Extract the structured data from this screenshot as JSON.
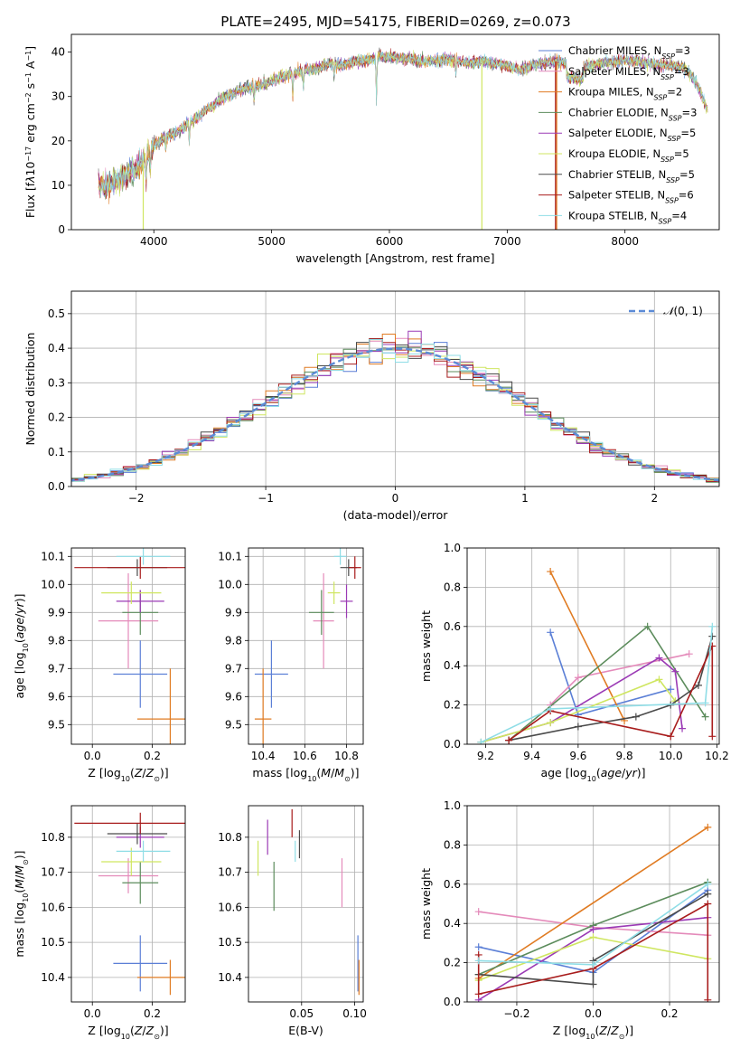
{
  "title": "PLATE=2495, MJD=54175, FIBERID=0269, z=0.073",
  "colors": {
    "Chabrier MILES": "#5b7fd6",
    "Salpeter MILES": "#e48aba",
    "Kroupa MILES": "#e07b22",
    "Chabrier ELODIE": "#5c8c5c",
    "Salpeter ELODIE": "#9b3ab5",
    "Kroupa ELODIE": "#cfe660",
    "Chabrier STELIB": "#4a4a4a",
    "Salpeter STELIB": "#a81c1c",
    "Kroupa STELIB": "#8fdde6"
  },
  "chart_data": [
    {
      "id": "spectrum",
      "type": "line",
      "xlabel": "wavelength [Angstrom, rest frame]",
      "ylabel_html": "Flux [f<tspan font-style='italic'>λ</tspan>10<tspan baseline-shift='super' font-size='8'>−17</tspan> erg cm<tspan baseline-shift='super' font-size='8'>−2</tspan> s<tspan baseline-shift='super' font-size='8'>−1</tspan> A<tspan baseline-shift='super' font-size='8'>−1</tspan>]",
      "xlim": [
        3300,
        8800
      ],
      "ylim": [
        0,
        44
      ],
      "xticks": [
        4000,
        5000,
        6000,
        7000,
        8000
      ],
      "yticks": [
        0,
        10,
        20,
        30,
        40
      ],
      "legend": "top-right",
      "continuum": {
        "x": [
          3530,
          3600,
          3700,
          3800,
          3900,
          4000,
          4100,
          4200,
          4300,
          4400,
          4500,
          4600,
          4700,
          4800,
          4900,
          5000,
          5100,
          5200,
          5300,
          5400,
          5500,
          5600,
          5700,
          5800,
          5900,
          6000,
          6100,
          6200,
          6300,
          6400,
          6500,
          6600,
          6700,
          6800,
          6900,
          7000,
          7100,
          7200,
          7300,
          7400,
          7500,
          7600,
          7700,
          7800,
          7900,
          8000,
          8100,
          8200,
          8300,
          8400,
          8500,
          8600,
          8700
        ],
        "y": [
          10.5,
          10,
          11,
          13,
          15,
          19,
          21,
          22,
          24,
          26,
          28,
          30,
          31,
          32,
          32.5,
          33.5,
          34.5,
          35.5,
          36,
          36.5,
          37.5,
          37,
          38,
          38,
          39,
          39,
          38.5,
          38.5,
          38,
          38,
          38.5,
          38,
          37.5,
          38,
          37.5,
          37,
          36,
          37,
          37.5,
          38,
          37.5,
          37,
          37,
          37.5,
          38,
          38,
          38,
          37.5,
          37,
          37,
          36.5,
          33.5,
          27
        ]
      },
      "series": [
        {
          "name": "Chabrier MILES",
          "label_suffix": "=3"
        },
        {
          "name": "Salpeter MILES",
          "label_suffix": "=3"
        },
        {
          "name": "Kroupa MILES",
          "label_suffix": "=2"
        },
        {
          "name": "Chabrier ELODIE",
          "label_suffix": "=3"
        },
        {
          "name": "Salpeter ELODIE",
          "label_suffix": "=5"
        },
        {
          "name": "Kroupa ELODIE",
          "label_suffix": "=5"
        },
        {
          "name": "Chabrier STELIB",
          "label_suffix": "=5"
        },
        {
          "name": "Salpeter STELIB",
          "label_suffix": "=6"
        },
        {
          "name": "Kroupa STELIB",
          "label_suffix": "=4"
        }
      ],
      "drops": [
        {
          "series": "Kroupa ELODIE",
          "x": 3910,
          "y_bottom": 0
        },
        {
          "series": "Kroupa ELODIE",
          "x": 6785,
          "y_bottom": 0
        },
        {
          "series": "Salpeter STELIB",
          "x": 7410,
          "y_bottom": 0
        },
        {
          "series": "Kroupa MILES",
          "x": 7420,
          "y_bottom": 0
        }
      ]
    },
    {
      "id": "residuals",
      "type": "histogram",
      "xlabel": "(data-model)/error",
      "ylabel": "Normed distribution",
      "xlim": [
        -2.5,
        2.5
      ],
      "ylim": [
        0,
        0.565
      ],
      "xticks": [
        -2,
        -1,
        0,
        1,
        2
      ],
      "yticks": [
        0.0,
        0.1,
        0.2,
        0.3,
        0.4,
        0.5
      ],
      "grid": true,
      "legend": "top-right",
      "reference": {
        "name": "N(0,1)",
        "mu": 0,
        "sigma": 1
      },
      "bin_width": 0.1
    },
    {
      "id": "age_vs_Z",
      "type": "errorbar",
      "xlabel_html": "Z [log<tspan baseline-shift='sub' font-size='8'>10</tspan>(<tspan font-style='italic'>Z</tspan>/<tspan font-style='italic'>Z</tspan><tspan baseline-shift='sub' font-size='8'>⊙</tspan>)]",
      "ylabel_html": "age  [log<tspan baseline-shift='sub' font-size='8'>10</tspan>(<tspan font-style='italic'>age</tspan>/<tspan font-style='italic'>yr</tspan>)]",
      "xlim": [
        -0.07,
        0.31
      ],
      "ylim": [
        9.43,
        10.13
      ],
      "xticks": [
        0.0,
        0.2
      ],
      "yticks": [
        9.5,
        9.6,
        9.7,
        9.8,
        9.9,
        10.0,
        10.1
      ],
      "grid": true,
      "points": [
        {
          "series": "Chabrier MILES",
          "x": 0.16,
          "xerr": 0.09,
          "y": 9.68,
          "yerr": 0.12
        },
        {
          "series": "Kroupa MILES",
          "x": 0.26,
          "xerr": 0.11,
          "y": 9.52,
          "yerr": 0.18
        },
        {
          "series": "Salpeter MILES",
          "x": 0.12,
          "xerr": 0.1,
          "y": 9.87,
          "yerr": 0.17
        },
        {
          "series": "Chabrier ELODIE",
          "x": 0.16,
          "xerr": 0.06,
          "y": 9.9,
          "yerr": 0.08
        },
        {
          "series": "Salpeter ELODIE",
          "x": 0.16,
          "xerr": 0.08,
          "y": 9.94,
          "yerr": 0.04
        },
        {
          "series": "Kroupa ELODIE",
          "x": 0.13,
          "xerr": 0.1,
          "y": 9.97,
          "yerr": 0.04
        },
        {
          "series": "Chabrier STELIB",
          "x": 0.15,
          "xerr": 0.1,
          "y": 10.06,
          "yerr": 0.03
        },
        {
          "series": "Salpeter STELIB",
          "x": 0.16,
          "xerr": 0.22,
          "y": 10.06,
          "yerr": 0.04
        },
        {
          "series": "Kroupa STELIB",
          "x": 0.17,
          "xerr": 0.09,
          "y": 10.1,
          "yerr": 0.03
        }
      ]
    },
    {
      "id": "age_vs_mass",
      "type": "errorbar",
      "xlabel_html": "mass [log<tspan baseline-shift='sub' font-size='8'>10</tspan>(<tspan font-style='italic'>M</tspan>/<tspan font-style='italic'>M</tspan><tspan baseline-shift='sub' font-size='8'>⊙</tspan>)]",
      "xlim": [
        10.33,
        10.88
      ],
      "ylim": [
        9.43,
        10.13
      ],
      "xticks": [
        10.4,
        10.6,
        10.8
      ],
      "yticks": [
        9.5,
        9.6,
        9.7,
        9.8,
        9.9,
        10.0,
        10.1
      ],
      "grid": true,
      "points": [
        {
          "series": "Chabrier MILES",
          "x": 10.44,
          "xerr": 0.08,
          "y": 9.68,
          "yerr": 0.12
        },
        {
          "series": "Kroupa MILES",
          "x": 10.4,
          "xerr": 0.04,
          "y": 9.52,
          "yerr": 0.18
        },
        {
          "series": "Salpeter MILES",
          "x": 10.69,
          "xerr": 0.05,
          "y": 9.87,
          "yerr": 0.17
        },
        {
          "series": "Chabrier ELODIE",
          "x": 10.68,
          "xerr": 0.06,
          "y": 9.9,
          "yerr": 0.08
        },
        {
          "series": "Salpeter ELODIE",
          "x": 10.8,
          "xerr": 0.03,
          "y": 9.94,
          "yerr": 0.06
        },
        {
          "series": "Kroupa ELODIE",
          "x": 10.74,
          "xerr": 0.03,
          "y": 9.97,
          "yerr": 0.04
        },
        {
          "series": "Chabrier STELIB",
          "x": 10.81,
          "xerr": 0.04,
          "y": 10.06,
          "yerr": 0.03
        },
        {
          "series": "Salpeter STELIB",
          "x": 10.84,
          "xerr": 0.03,
          "y": 10.06,
          "yerr": 0.04
        },
        {
          "series": "Kroupa STELIB",
          "x": 10.77,
          "xerr": 0.03,
          "y": 10.1,
          "yerr": 0.03
        }
      ]
    },
    {
      "id": "weight_vs_age",
      "type": "line",
      "xlabel_html": "age  [log<tspan baseline-shift='sub' font-size='8'>10</tspan>(<tspan font-style='italic'>age</tspan>/<tspan font-style='italic'>yr</tspan>)]",
      "ylabel": "mass weight",
      "xlim": [
        9.12,
        10.21
      ],
      "ylim": [
        0,
        1
      ],
      "xticks": [
        9.2,
        9.4,
        9.6,
        9.8,
        10.0,
        10.2
      ],
      "yticks": [
        0.0,
        0.2,
        0.4,
        0.6,
        0.8,
        1.0
      ],
      "grid": true,
      "series": [
        {
          "name": "Chabrier MILES",
          "x": [
            9.48,
            9.6,
            10.0
          ],
          "y": [
            0.57,
            0.15,
            0.28
          ]
        },
        {
          "name": "Salpeter MILES",
          "x": [
            9.48,
            9.6,
            10.08
          ],
          "y": [
            0.2,
            0.34,
            0.46
          ]
        },
        {
          "name": "Kroupa MILES",
          "x": [
            9.48,
            9.8
          ],
          "y": [
            0.88,
            0.12
          ]
        },
        {
          "name": "Chabrier ELODIE",
          "x": [
            9.3,
            9.9,
            10.15
          ],
          "y": [
            0.02,
            0.6,
            0.14
          ]
        },
        {
          "name": "Salpeter ELODIE",
          "x": [
            9.18,
            9.48,
            9.95,
            10.02,
            10.05
          ],
          "y": [
            0.01,
            0.11,
            0.44,
            0.37,
            0.08
          ]
        },
        {
          "name": "Kroupa ELODIE",
          "x": [
            9.18,
            9.48,
            9.95,
            10.02
          ],
          "y": [
            0.01,
            0.11,
            0.33,
            0.22
          ]
        },
        {
          "name": "Chabrier STELIB",
          "x": [
            9.3,
            9.6,
            9.85,
            10.0,
            10.12,
            10.18
          ],
          "y": [
            0.02,
            0.09,
            0.14,
            0.2,
            0.3,
            0.55
          ]
        },
        {
          "name": "Salpeter STELIB",
          "x": [
            9.3,
            9.48,
            10.0,
            10.18,
            10.18
          ],
          "y": [
            0.02,
            0.17,
            0.04,
            0.5,
            0.04
          ]
        },
        {
          "name": "Kroupa STELIB",
          "x": [
            9.18,
            9.48,
            10.15,
            10.18
          ],
          "y": [
            0.01,
            0.18,
            0.21,
            0.6
          ]
        }
      ]
    },
    {
      "id": "mass_vs_Z",
      "type": "errorbar",
      "xlabel_html": "Z [log<tspan baseline-shift='sub' font-size='8'>10</tspan>(<tspan font-style='italic'>Z</tspan>/<tspan font-style='italic'>Z</tspan><tspan baseline-shift='sub' font-size='8'>⊙</tspan>)]",
      "ylabel_html": "mass [log<tspan baseline-shift='sub' font-size='8'>10</tspan>(<tspan font-style='italic'>M</tspan>/<tspan font-style='italic'>M</tspan><tspan baseline-shift='sub' font-size='8'>⊙</tspan>)]",
      "xlim": [
        -0.07,
        0.31
      ],
      "ylim": [
        10.33,
        10.89
      ],
      "xticks": [
        0.0,
        0.2
      ],
      "yticks": [
        10.4,
        10.5,
        10.6,
        10.7,
        10.8
      ],
      "grid": true,
      "points": [
        {
          "series": "Chabrier MILES",
          "x": 0.16,
          "xerr": 0.09,
          "y": 10.44,
          "yerr": 0.08
        },
        {
          "series": "Kroupa MILES",
          "x": 0.26,
          "xerr": 0.11,
          "y": 10.4,
          "yerr": 0.05
        },
        {
          "series": "Salpeter MILES",
          "x": 0.12,
          "xerr": 0.1,
          "y": 10.69,
          "yerr": 0.05
        },
        {
          "series": "Chabrier ELODIE",
          "x": 0.16,
          "xerr": 0.06,
          "y": 10.67,
          "yerr": 0.06
        },
        {
          "series": "Salpeter ELODIE",
          "x": 0.16,
          "xerr": 0.08,
          "y": 10.8,
          "yerr": 0.03
        },
        {
          "series": "Kroupa ELODIE",
          "x": 0.13,
          "xerr": 0.1,
          "y": 10.73,
          "yerr": 0.04
        },
        {
          "series": "Chabrier STELIB",
          "x": 0.15,
          "xerr": 0.1,
          "y": 10.81,
          "yerr": 0.03
        },
        {
          "series": "Salpeter STELIB",
          "x": 0.16,
          "xerr": 0.22,
          "y": 10.84,
          "yerr": 0.03
        },
        {
          "series": "Kroupa STELIB",
          "x": 0.17,
          "xerr": 0.09,
          "y": 10.76,
          "yerr": 0.03
        }
      ]
    },
    {
      "id": "mass_vs_ebv",
      "type": "errorbar",
      "xlabel": "E(B-V)",
      "xlim": [
        0.0,
        0.108
      ],
      "ylim": [
        10.33,
        10.89
      ],
      "xticks": [
        0.05,
        0.1
      ],
      "yticks": [
        10.4,
        10.5,
        10.6,
        10.7,
        10.8
      ],
      "grid": true,
      "points": [
        {
          "series": "Kroupa ELODIE",
          "x": 0.009,
          "xerr": 0,
          "y": 10.74,
          "yerr": 0.05
        },
        {
          "series": "Salpeter ELODIE",
          "x": 0.018,
          "xerr": 0,
          "y": 10.8,
          "yerr": 0.05
        },
        {
          "series": "Chabrier ELODIE",
          "x": 0.024,
          "xerr": 0,
          "y": 10.66,
          "yerr": 0.07
        },
        {
          "series": "Salpeter STELIB",
          "x": 0.041,
          "xerr": 0,
          "y": 10.84,
          "yerr": 0.04
        },
        {
          "series": "Kroupa STELIB",
          "x": 0.044,
          "xerr": 0,
          "y": 10.76,
          "yerr": 0.03
        },
        {
          "series": "Chabrier STELIB",
          "x": 0.048,
          "xerr": 0,
          "y": 10.78,
          "yerr": 0.04
        },
        {
          "series": "Salpeter MILES",
          "x": 0.088,
          "xerr": 0,
          "y": 10.67,
          "yerr": 0.07
        },
        {
          "series": "Chabrier MILES",
          "x": 0.103,
          "xerr": 0,
          "y": 10.44,
          "yerr": 0.08
        },
        {
          "series": "Kroupa MILES",
          "x": 0.104,
          "xerr": 0,
          "y": 10.4,
          "yerr": 0.05
        }
      ]
    },
    {
      "id": "weight_vs_Z",
      "type": "line",
      "xlabel_html": "Z [log<tspan baseline-shift='sub' font-size='8'>10</tspan>(<tspan font-style='italic'>Z</tspan>/<tspan font-style='italic'>Z</tspan><tspan baseline-shift='sub' font-size='8'>⊙</tspan>)]",
      "ylabel": "mass weight",
      "xlim": [
        -0.33,
        0.33
      ],
      "ylim": [
        0,
        1
      ],
      "xticks": [
        -0.2,
        0.0,
        0.2
      ],
      "yticks": [
        0.0,
        0.2,
        0.4,
        0.6,
        0.8,
        1.0
      ],
      "grid": true,
      "series": [
        {
          "name": "Chabrier MILES",
          "x": [
            -0.3,
            0.0,
            0.3
          ],
          "y": [
            0.28,
            0.15,
            0.57
          ]
        },
        {
          "name": "Salpeter MILES",
          "x": [
            -0.3,
            0.0,
            0.3
          ],
          "y": [
            0.46,
            0.38,
            0.34
          ]
        },
        {
          "name": "Kroupa MILES",
          "x": [
            -0.3,
            0.3
          ],
          "y": [
            0.12,
            0.89
          ]
        },
        {
          "name": "Chabrier ELODIE",
          "x": [
            -0.3,
            0.0,
            0.3
          ],
          "y": [
            0.14,
            0.39,
            0.61
          ]
        },
        {
          "name": "Salpeter ELODIE",
          "x": [
            -0.3,
            0.0,
            0.3
          ],
          "y": [
            0.01,
            0.37,
            0.43
          ]
        },
        {
          "name": "Kroupa ELODIE",
          "x": [
            -0.3,
            0.0,
            0.3
          ],
          "y": [
            0.11,
            0.33,
            0.22
          ]
        },
        {
          "name": "Chabrier STELIB",
          "x": [
            -0.3,
            0.0,
            0.0,
            0.3
          ],
          "y": [
            0.14,
            0.09,
            0.21,
            0.55
          ]
        },
        {
          "name": "Salpeter STELIB",
          "x": [
            -0.3,
            -0.3,
            0.0,
            0.3,
            0.3
          ],
          "y": [
            0.24,
            0.04,
            0.17,
            0.5,
            0.01
          ]
        },
        {
          "name": "Kroupa STELIB",
          "x": [
            -0.3,
            0.0,
            0.3
          ],
          "y": [
            0.21,
            0.19,
            0.6
          ]
        }
      ]
    }
  ]
}
